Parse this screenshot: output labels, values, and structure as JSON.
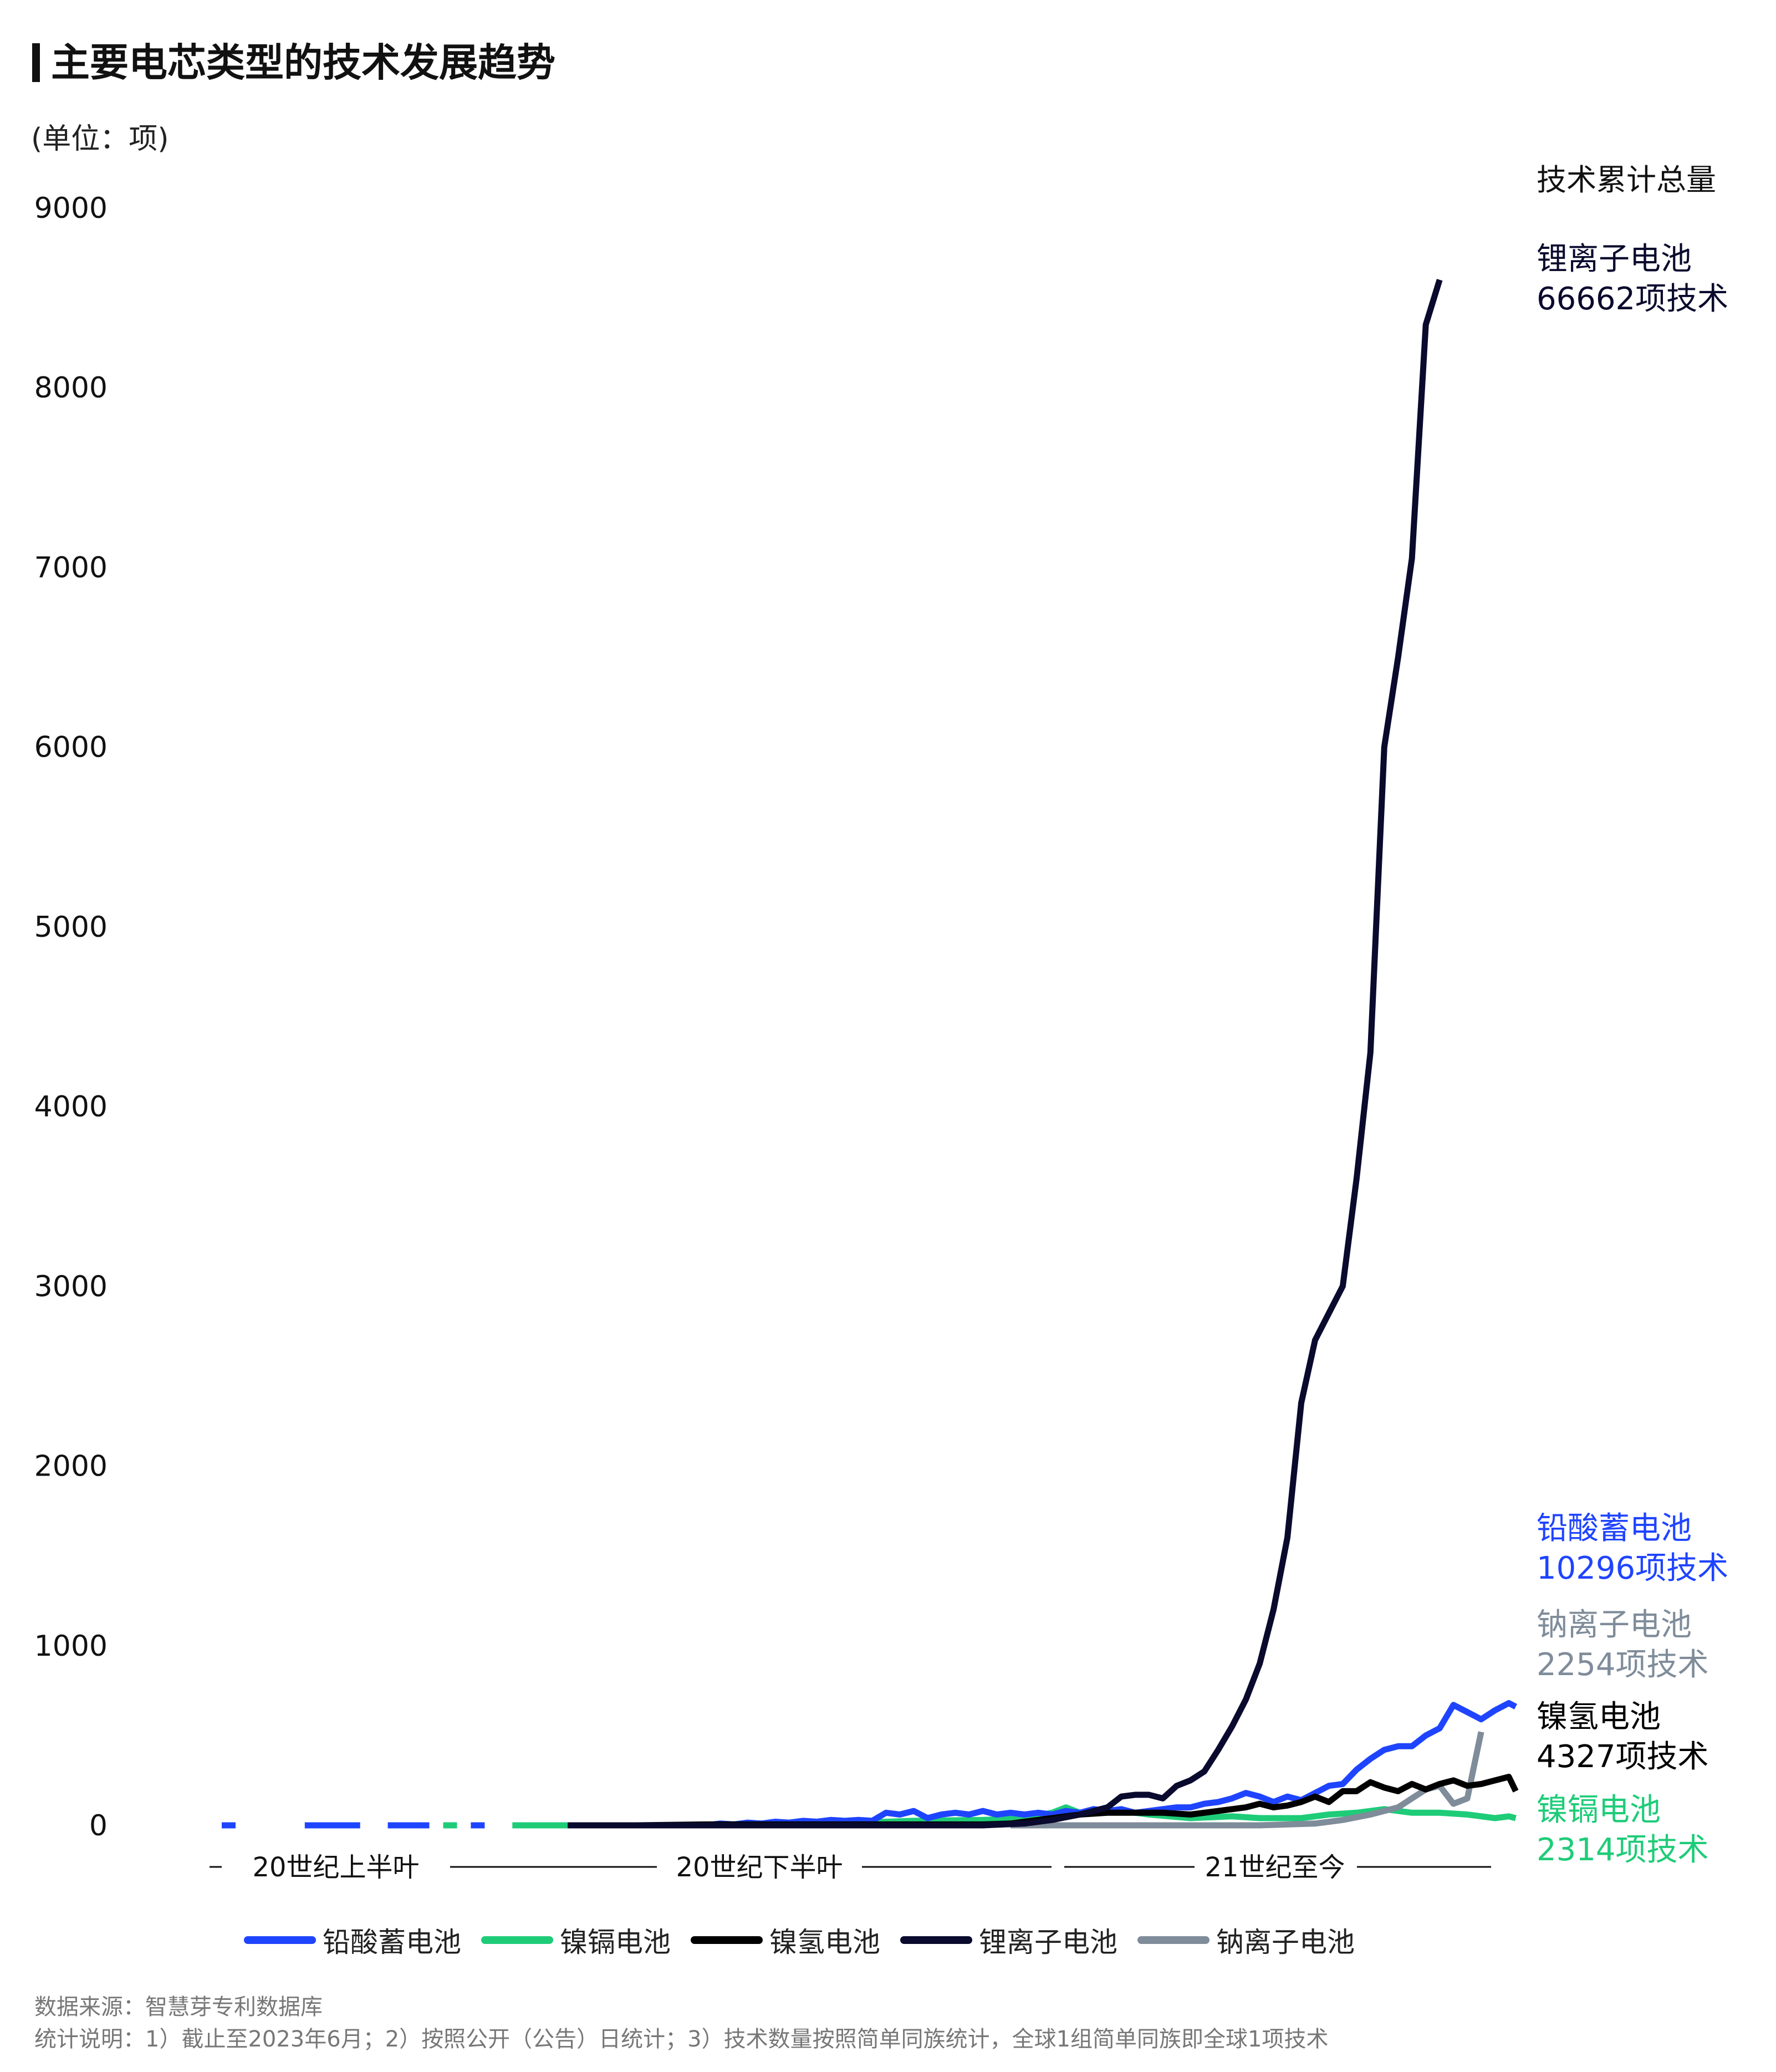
{
  "chart_data": {
    "type": "line",
    "title": "主要电芯类型的技术发展趋势",
    "ylabel": "(单位：项)",
    "ylim": [
      0,
      9000
    ],
    "yticks": [
      0,
      1000,
      2000,
      3000,
      4000,
      5000,
      6000,
      7000,
      8000,
      9000
    ],
    "x_start": 1930,
    "x_end": 2023,
    "eras": [
      {
        "label": "20世纪上半叶"
      },
      {
        "label": "20世纪下半叶"
      },
      {
        "label": "21世纪至今"
      }
    ],
    "side_heading": "技术累计总量",
    "series": [
      {
        "name": "铅酸蓄电池",
        "color": "#1f44ff",
        "total_label": "铅酸蓄电池",
        "total_value": "10296项技术",
        "points": [
          [
            1930,
            0
          ],
          [
            1931,
            0
          ],
          [
            1932,
            null
          ],
          [
            1935,
            null
          ],
          [
            1936,
            0
          ],
          [
            1940,
            0
          ],
          [
            1941,
            null
          ],
          [
            1942,
            0
          ],
          [
            1945,
            0
          ],
          [
            1946,
            null
          ],
          [
            1946.5,
            null
          ],
          [
            1948,
            0
          ],
          [
            1949,
            0
          ],
          [
            1950,
            null
          ],
          [
            1955,
            null
          ],
          [
            1956,
            0
          ],
          [
            1965,
            0
          ],
          [
            1966,
            10
          ],
          [
            1967,
            5
          ],
          [
            1968,
            15
          ],
          [
            1969,
            10
          ],
          [
            1970,
            20
          ],
          [
            1971,
            15
          ],
          [
            1972,
            25
          ],
          [
            1973,
            20
          ],
          [
            1974,
            30
          ],
          [
            1975,
            25
          ],
          [
            1976,
            30
          ],
          [
            1977,
            25
          ],
          [
            1978,
            70
          ],
          [
            1979,
            60
          ],
          [
            1980,
            80
          ],
          [
            1981,
            40
          ],
          [
            1982,
            60
          ],
          [
            1983,
            70
          ],
          [
            1984,
            60
          ],
          [
            1985,
            80
          ],
          [
            1986,
            60
          ],
          [
            1987,
            70
          ],
          [
            1988,
            60
          ],
          [
            1989,
            70
          ],
          [
            1990,
            60
          ],
          [
            1991,
            80
          ],
          [
            1992,
            70
          ],
          [
            1993,
            90
          ],
          [
            1994,
            80
          ],
          [
            1995,
            90
          ],
          [
            1996,
            70
          ],
          [
            1997,
            80
          ],
          [
            1998,
            90
          ],
          [
            1999,
            100
          ],
          [
            2000,
            100
          ],
          [
            2001,
            120
          ],
          [
            2002,
            130
          ],
          [
            2003,
            150
          ],
          [
            2004,
            180
          ],
          [
            2005,
            160
          ],
          [
            2006,
            130
          ],
          [
            2007,
            160
          ],
          [
            2008,
            140
          ],
          [
            2009,
            180
          ],
          [
            2010,
            220
          ],
          [
            2011,
            230
          ],
          [
            2012,
            310
          ],
          [
            2013,
            370
          ],
          [
            2014,
            420
          ],
          [
            2015,
            440
          ],
          [
            2016,
            440
          ],
          [
            2017,
            500
          ],
          [
            2018,
            540
          ],
          [
            2019,
            670
          ],
          [
            2020,
            630
          ],
          [
            2021,
            590
          ],
          [
            2022,
            640
          ],
          [
            2023,
            680
          ],
          [
            2023.5,
            660
          ]
        ]
      },
      {
        "name": "镍镉电池",
        "color": "#1ecc78",
        "total_label": "镍镉电池",
        "total_value": "2314项技术",
        "points": [
          [
            1945,
            null
          ],
          [
            1946,
            0
          ],
          [
            1947,
            0
          ],
          [
            1948,
            null
          ],
          [
            1950,
            null
          ],
          [
            1951,
            0
          ],
          [
            1966,
            0
          ],
          [
            1967,
            5
          ],
          [
            1968,
            10
          ],
          [
            1970,
            10
          ],
          [
            1975,
            15
          ],
          [
            1978,
            20
          ],
          [
            1980,
            25
          ],
          [
            1985,
            30
          ],
          [
            1988,
            40
          ],
          [
            1990,
            70
          ],
          [
            1991,
            100
          ],
          [
            1992,
            70
          ],
          [
            1993,
            70
          ],
          [
            1995,
            80
          ],
          [
            1997,
            60
          ],
          [
            2000,
            40
          ],
          [
            2003,
            50
          ],
          [
            2005,
            40
          ],
          [
            2008,
            40
          ],
          [
            2010,
            60
          ],
          [
            2012,
            70
          ],
          [
            2014,
            90
          ],
          [
            2016,
            70
          ],
          [
            2018,
            70
          ],
          [
            2020,
            60
          ],
          [
            2022,
            40
          ],
          [
            2023,
            50
          ],
          [
            2023.5,
            40
          ]
        ]
      },
      {
        "name": "镍氢电池",
        "color": "#000000",
        "total_label": "镍氢电池",
        "total_value": "4327项技术",
        "points": [
          [
            1955,
            0
          ],
          [
            1960,
            0
          ],
          [
            1965,
            5
          ],
          [
            1970,
            5
          ],
          [
            1975,
            5
          ],
          [
            1980,
            5
          ],
          [
            1985,
            5
          ],
          [
            1987,
            10
          ],
          [
            1988,
            20
          ],
          [
            1990,
            40
          ],
          [
            1992,
            60
          ],
          [
            1994,
            70
          ],
          [
            1996,
            70
          ],
          [
            1998,
            70
          ],
          [
            2000,
            60
          ],
          [
            2002,
            80
          ],
          [
            2004,
            100
          ],
          [
            2005,
            120
          ],
          [
            2006,
            100
          ],
          [
            2007,
            110
          ],
          [
            2008,
            130
          ],
          [
            2009,
            160
          ],
          [
            2010,
            130
          ],
          [
            2011,
            190
          ],
          [
            2012,
            190
          ],
          [
            2013,
            240
          ],
          [
            2014,
            210
          ],
          [
            2015,
            190
          ],
          [
            2016,
            230
          ],
          [
            2017,
            200
          ],
          [
            2018,
            230
          ],
          [
            2019,
            250
          ],
          [
            2020,
            220
          ],
          [
            2021,
            230
          ],
          [
            2022,
            250
          ],
          [
            2023,
            270
          ],
          [
            2023.5,
            190
          ]
        ]
      },
      {
        "name": "锂离子电池",
        "color": "#0a0a2e",
        "total_label": "锂离子电池",
        "total_value": "66662项技术",
        "points": [
          [
            1955,
            0
          ],
          [
            1965,
            0
          ],
          [
            1975,
            0
          ],
          [
            1985,
            0
          ],
          [
            1988,
            10
          ],
          [
            1990,
            30
          ],
          [
            1992,
            60
          ],
          [
            1994,
            100
          ],
          [
            1995,
            160
          ],
          [
            1996,
            170
          ],
          [
            1997,
            170
          ],
          [
            1998,
            150
          ],
          [
            1999,
            220
          ],
          [
            2000,
            250
          ],
          [
            2001,
            300
          ],
          [
            2002,
            420
          ],
          [
            2003,
            550
          ],
          [
            2004,
            700
          ],
          [
            2005,
            900
          ],
          [
            2006,
            1200
          ],
          [
            2007,
            1600
          ],
          [
            2008,
            2350
          ],
          [
            2009,
            2700
          ],
          [
            2010,
            2850
          ],
          [
            2011,
            3000
          ],
          [
            2012,
            3600
          ],
          [
            2013,
            4300
          ],
          [
            2014,
            6000
          ],
          [
            2015,
            6500
          ],
          [
            2016,
            7050
          ],
          [
            2017,
            8350
          ],
          [
            2018,
            8600
          ]
        ]
      },
      {
        "name": "钠离子电池",
        "color": "#7f8c9a",
        "total_label": "钠离子电池",
        "total_value": "2254项技术",
        "points": [
          [
            1970,
            0
          ],
          [
            1978,
            0
          ],
          [
            1979,
            null
          ],
          [
            1981,
            null
          ],
          [
            1982,
            0
          ],
          [
            1983,
            0
          ],
          [
            1984,
            null
          ],
          [
            1986,
            null
          ],
          [
            1987,
            0
          ],
          [
            1990,
            0
          ],
          [
            1995,
            0
          ],
          [
            2000,
            0
          ],
          [
            2003,
            0
          ],
          [
            2005,
            0
          ],
          [
            2007,
            5
          ],
          [
            2009,
            10
          ],
          [
            2011,
            30
          ],
          [
            2013,
            60
          ],
          [
            2014,
            80
          ],
          [
            2015,
            100
          ],
          [
            2016,
            150
          ],
          [
            2017,
            200
          ],
          [
            2018,
            220
          ],
          [
            2019,
            120
          ],
          [
            2020,
            150
          ],
          [
            2021,
            520
          ]
        ]
      }
    ]
  },
  "footnotes": {
    "source": "数据来源：智慧芽专利数据库",
    "notes": "统计说明：1）截止至2023年6月；2）按照公开（公告）日统计；3）技术数量按照简单同族统计，全球1组简单同族即全球1项技术"
  }
}
